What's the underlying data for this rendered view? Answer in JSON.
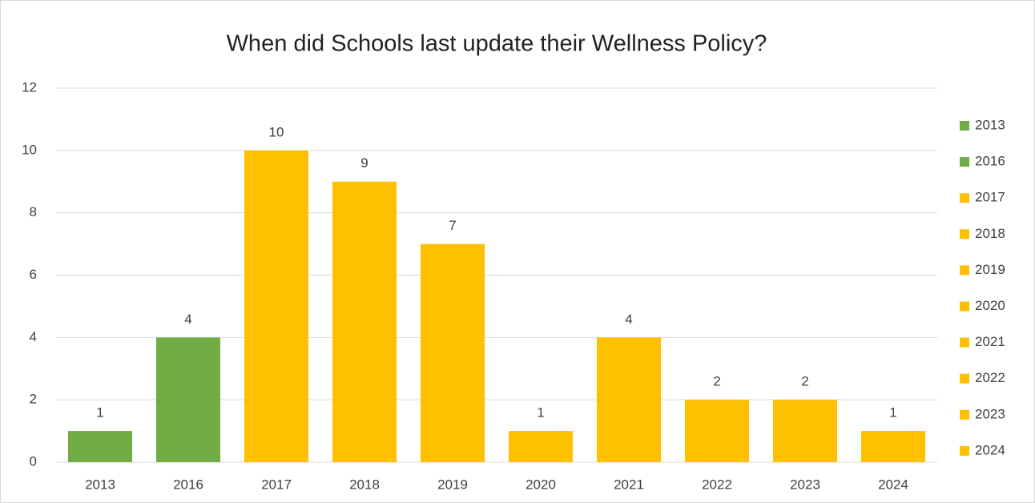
{
  "chart_data": {
    "type": "bar",
    "title": "When did Schools last update their Wellness Policy?",
    "categories": [
      "2013",
      "2016",
      "2017",
      "2018",
      "2019",
      "2020",
      "2021",
      "2022",
      "2023",
      "2024"
    ],
    "values": [
      1,
      4,
      10,
      9,
      7,
      1,
      4,
      2,
      2,
      1
    ],
    "colors": [
      "#70ad47",
      "#70ad47",
      "#ffc000",
      "#ffc000",
      "#ffc000",
      "#ffc000",
      "#ffc000",
      "#ffc000",
      "#ffc000",
      "#ffc000"
    ],
    "ylim": [
      0,
      12
    ],
    "yticks": [
      0,
      2,
      4,
      6,
      8,
      10,
      12
    ],
    "grid": true,
    "legend": "right"
  }
}
